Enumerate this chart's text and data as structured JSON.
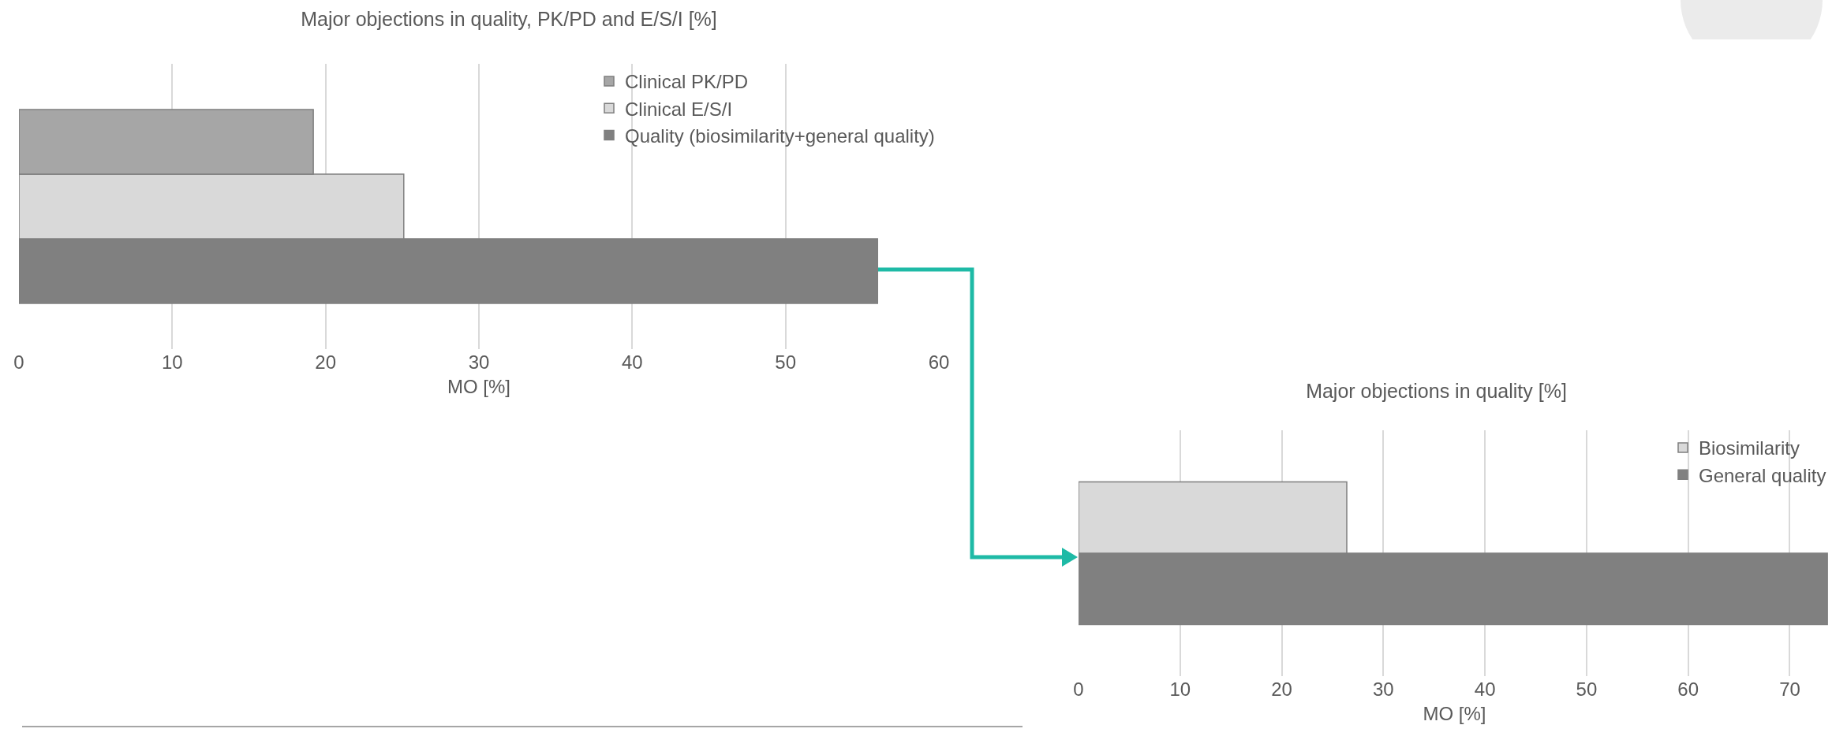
{
  "chart_data": [
    {
      "type": "bar",
      "orientation": "horizontal",
      "title": "Major objections in quality, PK/PD and E/S/I [%]",
      "xlabel": "MO [%]",
      "categories": [
        null
      ],
      "series": [
        {
          "name": "Clinical PK/PD",
          "color": "#a6a6a6",
          "values": [
            19.2
          ]
        },
        {
          "name": "Clinical E/S/I",
          "color": "#d9d9d9",
          "values": [
            25.1
          ]
        },
        {
          "name": "Quality (biosimilarity+general quality)",
          "color": "#808080",
          "values": [
            56
          ]
        }
      ],
      "xlim": [
        0,
        60
      ],
      "xticks": [
        0,
        10,
        20,
        30,
        40,
        50,
        60
      ],
      "grid": "x",
      "legend": "top right",
      "tick_labels": "x"
    },
    {
      "type": "bar",
      "orientation": "horizontal",
      "title": "Major objections in quality [%]",
      "xlabel": "MO [%]",
      "categories": [
        null
      ],
      "series": [
        {
          "name": "Biosimilarity",
          "color": "#d9d9d9",
          "values": [
            26.4
          ]
        },
        {
          "name": "General quality",
          "color": "#808080",
          "values": [
            73.7
          ]
        }
      ],
      "xlim": [
        0,
        74
      ],
      "xticks": [
        0,
        10,
        20,
        30,
        40,
        50,
        60,
        70
      ],
      "grid": "x",
      "legend": "top right",
      "tick_labels": "x"
    }
  ]
}
